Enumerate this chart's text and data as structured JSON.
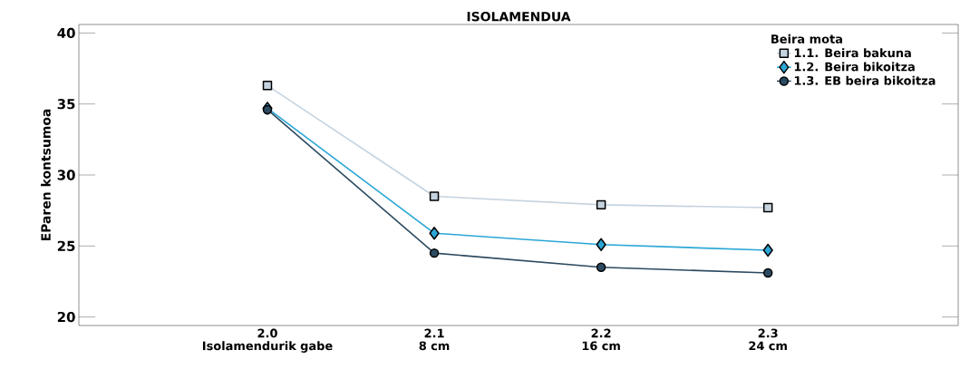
{
  "chart_data": {
    "type": "line",
    "title": "ISOLAMENDUA",
    "ylabel": "EParen kontsumoa",
    "legend_title": "Beira mota",
    "categories": [
      "2.0\nIsolamendurik gabe",
      "2.1\n8 cm",
      "2.2\n16 cm",
      "2.3\n24 cm"
    ],
    "series": [
      {
        "name": "1.1. Beira bakuna",
        "color": "#c5d3df",
        "marker": "square",
        "values": [
          36.3,
          28.5,
          27.9,
          27.7
        ]
      },
      {
        "name": "1.2. Beira bikoitza",
        "color": "#2aa6d6",
        "marker": "diamond",
        "values": [
          34.7,
          25.9,
          25.1,
          24.7
        ]
      },
      {
        "name": "1.3. EB beira bikoitza",
        "color": "#2c4a60",
        "marker": "circle",
        "values": [
          34.6,
          24.5,
          23.5,
          23.1
        ]
      }
    ],
    "ylim": [
      19.4,
      40.6
    ],
    "yticks": [
      20,
      25,
      30,
      35,
      40
    ],
    "grid": false,
    "legend": "top right",
    "line_style": "solid"
  }
}
